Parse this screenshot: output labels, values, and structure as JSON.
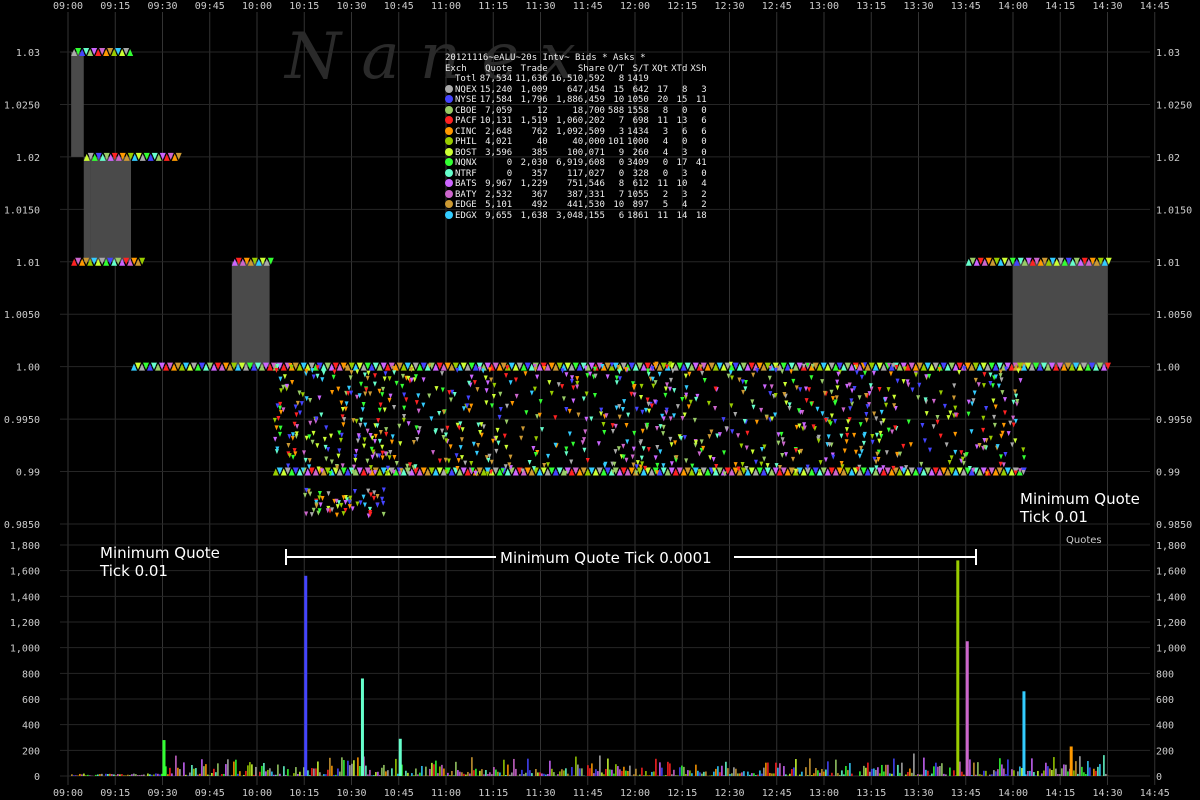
{
  "watermark": "N a n e x",
  "legend": {
    "title": "20121116~eALU~20s Intv~ Bids * Asks *",
    "columns": [
      "Exch",
      "Quote",
      "Trade",
      "Share",
      "Q/T",
      "S/T",
      "XQt",
      "XTd",
      "XSh"
    ],
    "rows": [
      {
        "exch": "Totl",
        "quote": "87,534",
        "trade": "11,636",
        "share": "16,510,592",
        "qt": "8",
        "st": "1419",
        "xqt": "",
        "xtd": "",
        "xsh": "",
        "color": ""
      },
      {
        "exch": "NQEX",
        "quote": "15,240",
        "trade": "1,009",
        "share": "647,454",
        "qt": "15",
        "st": "642",
        "xqt": "17",
        "xtd": "8",
        "xsh": "3",
        "color": "#aaaaaa"
      },
      {
        "exch": "NYSE",
        "quote": "17,584",
        "trade": "1,796",
        "share": "1,886,459",
        "qt": "10",
        "st": "1050",
        "xqt": "20",
        "xtd": "15",
        "xsh": "11",
        "color": "#4444ff"
      },
      {
        "exch": "CBOE",
        "quote": "7,059",
        "trade": "12",
        "share": "18,700",
        "qt": "588",
        "st": "1558",
        "xqt": "8",
        "xtd": "0",
        "xsh": "0",
        "color": "#99cc66"
      },
      {
        "exch": "PACF",
        "quote": "10,131",
        "trade": "1,519",
        "share": "1,060,202",
        "qt": "7",
        "st": "698",
        "xqt": "11",
        "xtd": "13",
        "xsh": "6",
        "color": "#ff2222"
      },
      {
        "exch": "CINC",
        "quote": "2,648",
        "trade": "762",
        "share": "1,092,509",
        "qt": "3",
        "st": "1434",
        "xqt": "3",
        "xtd": "6",
        "xsh": "6",
        "color": "#ff9900"
      },
      {
        "exch": "PHIL",
        "quote": "4,021",
        "trade": "40",
        "share": "40,000",
        "qt": "101",
        "st": "1000",
        "xqt": "4",
        "xtd": "0",
        "xsh": "0",
        "color": "#99cc00"
      },
      {
        "exch": "BOST",
        "quote": "3,596",
        "trade": "385",
        "share": "100,071",
        "qt": "9",
        "st": "260",
        "xqt": "4",
        "xtd": "3",
        "xsh": "0",
        "color": "#ccff33"
      },
      {
        "exch": "NQNX",
        "quote": "0",
        "trade": "2,030",
        "share": "6,919,608",
        "qt": "0",
        "st": "3409",
        "xqt": "0",
        "xtd": "17",
        "xsh": "41",
        "color": "#33ff33"
      },
      {
        "exch": "NTRF",
        "quote": "0",
        "trade": "357",
        "share": "117,027",
        "qt": "0",
        "st": "328",
        "xqt": "0",
        "xtd": "3",
        "xsh": "0",
        "color": "#66ffcc"
      },
      {
        "exch": "BATS",
        "quote": "9,967",
        "trade": "1,229",
        "share": "751,546",
        "qt": "8",
        "st": "612",
        "xqt": "11",
        "xtd": "10",
        "xsh": "4",
        "color": "#cc66ff"
      },
      {
        "exch": "BATY",
        "quote": "2,532",
        "trade": "367",
        "share": "387,331",
        "qt": "7",
        "st": "1055",
        "xqt": "2",
        "xtd": "3",
        "xsh": "2",
        "color": "#cc66cc"
      },
      {
        "exch": "EDGE",
        "quote": "5,101",
        "trade": "492",
        "share": "441,530",
        "qt": "10",
        "st": "897",
        "xqt": "5",
        "xtd": "4",
        "xsh": "2",
        "color": "#cc9933"
      },
      {
        "exch": "EDGX",
        "quote": "9,655",
        "trade": "1,638",
        "share": "3,048,155",
        "qt": "6",
        "st": "1861",
        "xqt": "11",
        "xtd": "14",
        "xsh": "18",
        "color": "#33ccff"
      }
    ]
  },
  "annotations": {
    "left": [
      "Minimum Quote",
      "Tick 0.01"
    ],
    "right": [
      "Minimum Quote",
      "Tick 0.01"
    ],
    "middle": "Minimum Quote Tick 0.0001",
    "quotes_label": "Quotes"
  },
  "chart_data": [
    {
      "type": "area",
      "panel": "price",
      "x_ticks": [
        "09:00",
        "09:15",
        "09:30",
        "09:45",
        "10:00",
        "10:15",
        "10:30",
        "10:45",
        "11:00",
        "11:15",
        "11:30",
        "11:45",
        "12:00",
        "12:15",
        "12:30",
        "12:45",
        "13:00",
        "13:15",
        "13:30",
        "13:45",
        "14:00",
        "14:15",
        "14:30",
        "14:45"
      ],
      "y_ticks": [
        "1.03",
        "1.0250",
        "1.02",
        "1.0150",
        "1.01",
        "1.0050",
        "1.00",
        "0.9950",
        "0.99",
        "0.9850"
      ],
      "ylim": [
        0.985,
        1.03
      ],
      "spread_blocks": [
        {
          "x_start": "09:01",
          "x_end": "09:05",
          "bid": 1.02,
          "ask": 1.03
        },
        {
          "x_start": "09:05",
          "x_end": "09:07",
          "bid": 1.01,
          "ask": 1.02
        },
        {
          "x_start": "09:07",
          "x_end": "09:20",
          "bid": 1.01,
          "ask": 1.02
        },
        {
          "x_start": "09:52",
          "x_end": "10:04",
          "bid": 1.0,
          "ask": 1.01
        },
        {
          "x_start": "14:00",
          "x_end": "14:30",
          "bid": 1.0,
          "ask": 1.01
        }
      ],
      "quote_bands": [
        {
          "x_start": "09:01",
          "x_end": "09:19",
          "price": 1.03
        },
        {
          "x_start": "09:01",
          "x_end": "09:23",
          "price": 1.01
        },
        {
          "x_start": "09:05",
          "x_end": "09:35",
          "price": 1.02
        },
        {
          "x_start": "09:52",
          "x_end": "10:04",
          "price": 1.01
        },
        {
          "x_start": "09:20",
          "x_end": "10:05",
          "price": 1.0
        },
        {
          "x_start": "10:05",
          "x_end": "14:03",
          "price": 1.0
        },
        {
          "x_start": "10:05",
          "x_end": "14:03",
          "price": 0.99
        },
        {
          "x_start": "13:45",
          "x_end": "14:30",
          "price": 1.01
        },
        {
          "x_start": "14:00",
          "x_end": "14:30",
          "price": 1.0
        }
      ]
    },
    {
      "type": "bar",
      "panel": "volume",
      "x_ticks": [
        "09:00",
        "09:15",
        "09:30",
        "09:45",
        "10:00",
        "10:15",
        "10:30",
        "10:45",
        "11:00",
        "11:15",
        "11:30",
        "11:45",
        "12:00",
        "12:15",
        "12:30",
        "12:45",
        "13:00",
        "13:15",
        "13:30",
        "13:45",
        "14:00",
        "14:15",
        "14:30",
        "14:45"
      ],
      "y_ticks": [
        "1,800",
        "1,600",
        "1,400",
        "1,200",
        "1,000",
        "800",
        "600",
        "400",
        "200",
        "0"
      ],
      "ylim": [
        0,
        1800
      ],
      "ylabel": "Quotes",
      "peaks": [
        {
          "time": "09:30",
          "value": 280
        },
        {
          "time": "10:15",
          "value": 1560
        },
        {
          "time": "10:33",
          "value": 760
        },
        {
          "time": "10:45",
          "value": 290
        },
        {
          "time": "13:42",
          "value": 1680
        },
        {
          "time": "13:45",
          "value": 1050
        },
        {
          "time": "14:03",
          "value": 660
        },
        {
          "time": "14:18",
          "value": 230
        }
      ]
    }
  ]
}
